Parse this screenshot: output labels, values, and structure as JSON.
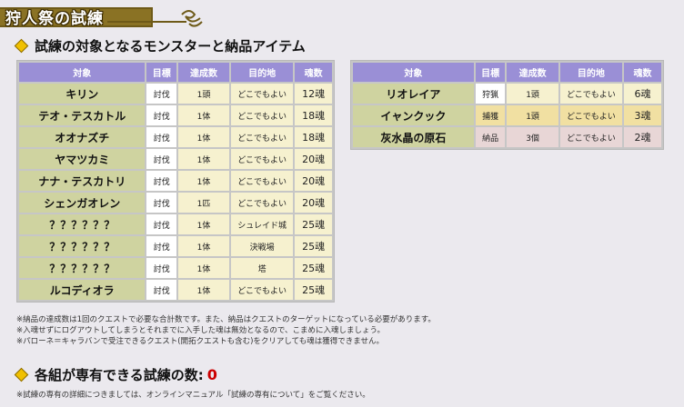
{
  "header": {
    "title": "狩人祭の試練"
  },
  "section1": {
    "heading": "試練の対象となるモンスターと納品アイテム"
  },
  "columns": [
    "対象",
    "目標",
    "達成数",
    "目的地",
    "魂数"
  ],
  "left_table": [
    {
      "target": "キリン",
      "goal": "討伐",
      "amount": "1頭",
      "place": "どこでもよい",
      "souls": "12魂"
    },
    {
      "target": "テオ・テスカトル",
      "goal": "討伐",
      "amount": "1体",
      "place": "どこでもよい",
      "souls": "18魂"
    },
    {
      "target": "オオナズチ",
      "goal": "討伐",
      "amount": "1体",
      "place": "どこでもよい",
      "souls": "18魂"
    },
    {
      "target": "ヤマツカミ",
      "goal": "討伐",
      "amount": "1体",
      "place": "どこでもよい",
      "souls": "20魂"
    },
    {
      "target": "ナナ・テスカトリ",
      "goal": "討伐",
      "amount": "1体",
      "place": "どこでもよい",
      "souls": "20魂"
    },
    {
      "target": "シェンガオレン",
      "goal": "討伐",
      "amount": "1匹",
      "place": "どこでもよい",
      "souls": "20魂"
    },
    {
      "target": "？？？？？？",
      "goal": "討伐",
      "amount": "1体",
      "place": "シュレイド城",
      "souls": "25魂"
    },
    {
      "target": "？？？？？？",
      "goal": "討伐",
      "amount": "1体",
      "place": "決戦場",
      "souls": "25魂"
    },
    {
      "target": "？？？？？？",
      "goal": "討伐",
      "amount": "1体",
      "place": "塔",
      "souls": "25魂"
    },
    {
      "target": "ルコディオラ",
      "goal": "討伐",
      "amount": "1体",
      "place": "どこでもよい",
      "souls": "25魂"
    }
  ],
  "right_table": [
    {
      "target": "リオレイア",
      "goal": "狩猟",
      "amount": "1頭",
      "place": "どこでもよい",
      "souls": "6魂",
      "style": "normal"
    },
    {
      "target": "イャンクック",
      "goal": "捕獲",
      "amount": "1頭",
      "place": "どこでもよい",
      "souls": "3魂",
      "style": "hi"
    },
    {
      "target": "灰水晶の原石",
      "goal": "納品",
      "amount": "3個",
      "place": "どこでもよい",
      "souls": "2魂",
      "style": "pink"
    }
  ],
  "notes": [
    "※納品の達成数は1回のクエストで必要な合計数です。また、納品はクエストのターゲットになっている必要があります。",
    "※入魂せずにログアウトしてしまうとそれまでに入手した魂は無効となるので、こまめに入魂しましょう。",
    "※パローネ＝キャラバンで受注できるクエスト(開拓クエストも含む)をクリアしても魂は獲得できません。"
  ],
  "section2": {
    "heading": "各組が専有できる試練の数:",
    "count": "0"
  },
  "footnote": "※試練の専有の詳細につきましては、オンラインマニュアル「試練の専有について」をご覧ください。"
}
